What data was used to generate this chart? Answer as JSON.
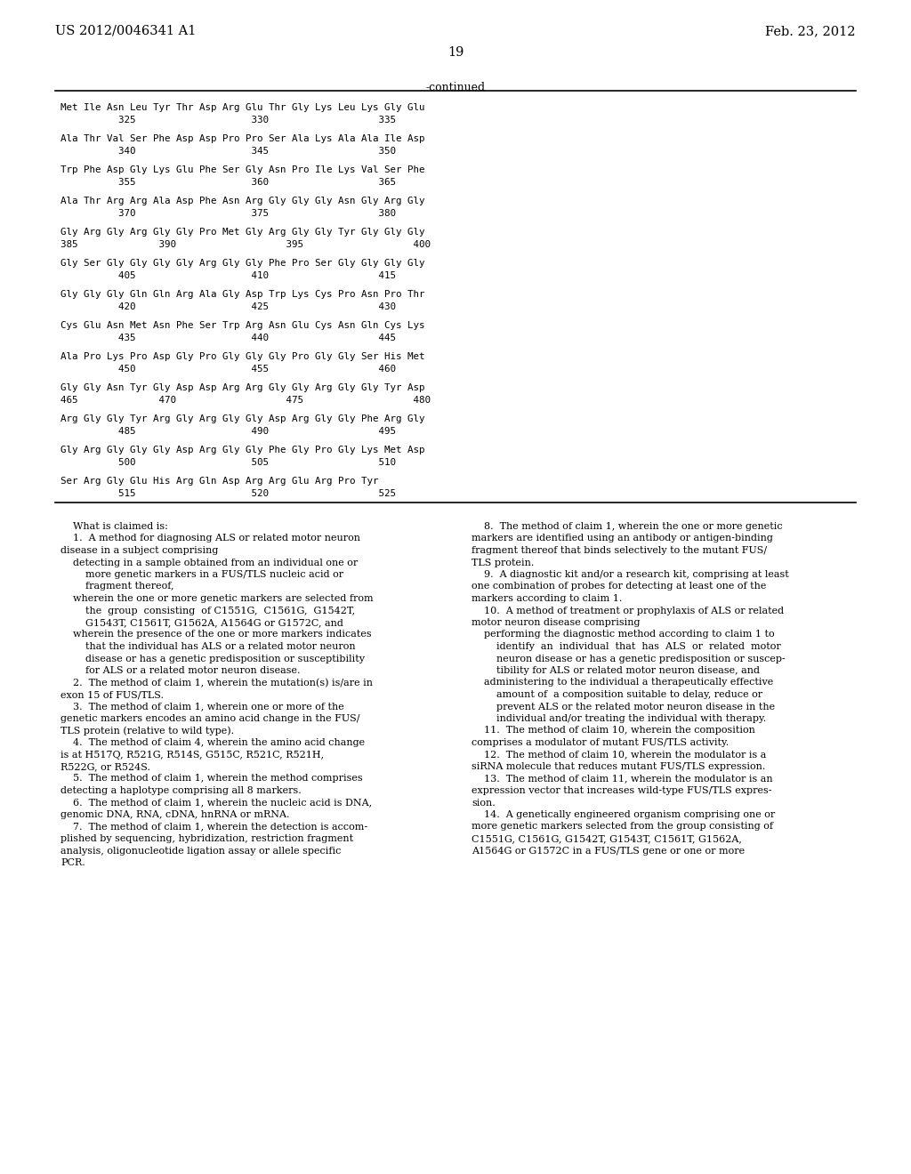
{
  "background_color": "#ffffff",
  "header_left": "US 2012/0046341 A1",
  "header_right": "Feb. 23, 2012",
  "page_number": "19",
  "continued_label": "-continued",
  "sequence_blocks": [
    {
      "seq": "Met Ile Asn Leu Tyr Thr Asp Arg Glu Thr Gly Lys Leu Lys Gly Glu",
      "nums": "          325                    330                   335"
    },
    {
      "seq": "Ala Thr Val Ser Phe Asp Asp Pro Pro Ser Ala Lys Ala Ala Ile Asp",
      "nums": "          340                    345                   350"
    },
    {
      "seq": "Trp Phe Asp Gly Lys Glu Phe Ser Gly Asn Pro Ile Lys Val Ser Phe",
      "nums": "          355                    360                   365"
    },
    {
      "seq": "Ala Thr Arg Arg Ala Asp Phe Asn Arg Gly Gly Gly Asn Gly Arg Gly",
      "nums": "          370                    375                   380"
    },
    {
      "seq": "Gly Arg Gly Arg Gly Gly Pro Met Gly Arg Gly Gly Tyr Gly Gly Gly",
      "nums": "385              390                   395                   400"
    },
    {
      "seq": "Gly Ser Gly Gly Gly Gly Arg Gly Gly Phe Pro Ser Gly Gly Gly Gly",
      "nums": "          405                    410                   415"
    },
    {
      "seq": "Gly Gly Gly Gln Gln Arg Ala Gly Asp Trp Lys Cys Pro Asn Pro Thr",
      "nums": "          420                    425                   430"
    },
    {
      "seq": "Cys Glu Asn Met Asn Phe Ser Trp Arg Asn Glu Cys Asn Gln Cys Lys",
      "nums": "          435                    440                   445"
    },
    {
      "seq": "Ala Pro Lys Pro Asp Gly Pro Gly Gly Gly Pro Gly Gly Ser His Met",
      "nums": "          450                    455                   460"
    },
    {
      "seq": "Gly Gly Asn Tyr Gly Asp Asp Arg Arg Gly Gly Arg Gly Gly Tyr Asp",
      "nums": "465              470                   475                   480"
    },
    {
      "seq": "Arg Gly Gly Tyr Arg Gly Arg Gly Gly Asp Arg Gly Gly Phe Arg Gly",
      "nums": "          485                    490                   495"
    },
    {
      "seq": "Gly Arg Gly Gly Gly Asp Arg Gly Gly Phe Gly Pro Gly Lys Met Asp",
      "nums": "          500                    505                   510"
    },
    {
      "seq": "Ser Arg Gly Glu His Arg Gln Asp Arg Arg Glu Arg Pro Tyr",
      "nums": "          515                    520                   525"
    }
  ],
  "claims_col1": [
    "    What is claimed is:",
    "    1.  A method for diagnosing ALS or related motor neuron",
    "disease in a subject comprising",
    "    detecting in a sample obtained from an individual one or",
    "        more genetic markers in a FUS/TLS nucleic acid or",
    "        fragment thereof,",
    "    wherein the one or more genetic markers are selected from",
    "        the  group  consisting  of C1551G,  C1561G,  G1542T,",
    "        G1543T, C1561T, G1562A, A1564G or G1572C, and",
    "    wherein the presence of the one or more markers indicates",
    "        that the individual has ALS or a related motor neuron",
    "        disease or has a genetic predisposition or susceptibility",
    "        for ALS or a related motor neuron disease.",
    "    2.  The method of claim 1, wherein the mutation(s) is/are in",
    "exon 15 of FUS/TLS.",
    "    3.  The method of claim 1, wherein one or more of the",
    "genetic markers encodes an amino acid change in the FUS/",
    "TLS protein (relative to wild type).",
    "    4.  The method of claim 4, wherein the amino acid change",
    "is at H517Q, R521G, R514S, G515C, R521C, R521H,",
    "R522G, or R524S.",
    "    5.  The method of claim 1, wherein the method comprises",
    "detecting a haplotype comprising all 8 markers.",
    "    6.  The method of claim 1, wherein the nucleic acid is DNA,",
    "genomic DNA, RNA, cDNA, hnRNA or mRNA.",
    "    7.  The method of claim 1, wherein the detection is accom-",
    "plished by sequencing, hybridization, restriction fragment",
    "analysis, oligonucleotide ligation assay or allele specific",
    "PCR."
  ],
  "claims_col2": [
    "    8.  The method of claim 1, wherein the one or more genetic",
    "markers are identified using an antibody or antigen-binding",
    "fragment thereof that binds selectively to the mutant FUS/",
    "TLS protein.",
    "    9.  A diagnostic kit and/or a research kit, comprising at least",
    "one combination of probes for detecting at least one of the",
    "markers according to claim 1.",
    "    10.  A method of treatment or prophylaxis of ALS or related",
    "motor neuron disease comprising",
    "    performing the diagnostic method according to claim 1 to",
    "        identify  an  individual  that  has  ALS  or  related  motor",
    "        neuron disease or has a genetic predisposition or suscep-",
    "        tibility for ALS or related motor neuron disease, and",
    "    administering to the individual a therapeutically effective",
    "        amount of  a composition suitable to delay, reduce or",
    "        prevent ALS or the related motor neuron disease in the",
    "        individual and/or treating the individual with therapy.",
    "    11.  The method of claim 10, wherein the composition",
    "comprises a modulator of mutant FUS/TLS activity.",
    "    12.  The method of claim 10, wherein the modulator is a",
    "siRNA molecule that reduces mutant FUS/TLS expression.",
    "    13.  The method of claim 11, wherein the modulator is an",
    "expression vector that increases wild-type FUS/TLS expres-",
    "sion.",
    "    14.  A genetically engineered organism comprising one or",
    "more genetic markers selected from the group consisting of",
    "C1551G, C1561G, G1542T, G1543T, C1561T, G1562A,",
    "A1564G or G1572C in a FUS/TLS gene or one or more"
  ]
}
